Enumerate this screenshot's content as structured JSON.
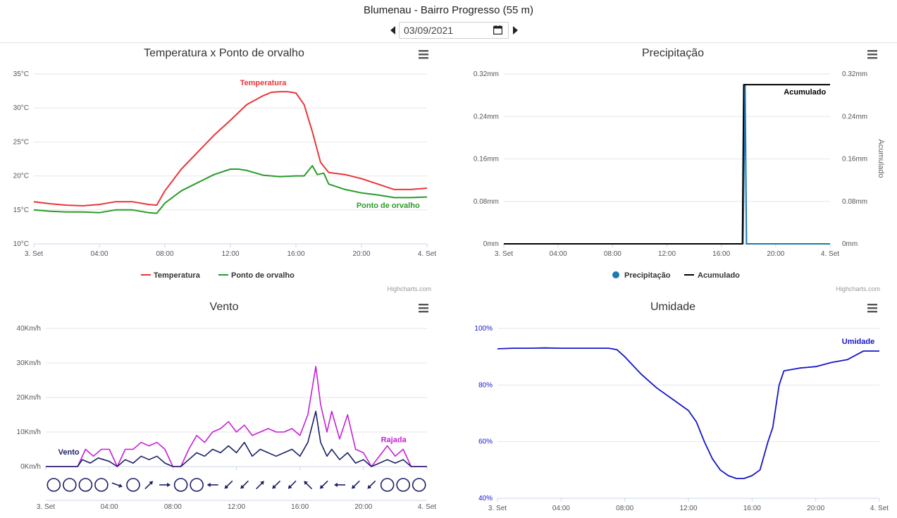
{
  "header": {
    "title": "Blumenau - Bairro Progresso (55 m)",
    "date_value": "03/09/2021"
  },
  "credits": "Highcharts.com",
  "colors": {
    "temperatura": "#e8373a",
    "orvalho": "#2a9b2a",
    "precipitacao": "#1f77b4",
    "acumulado": "#000000",
    "vento": "#1a1f66",
    "rajada": "#c61fd6",
    "umidade": "#1515c8"
  },
  "chart_data": [
    {
      "id": "temp",
      "type": "line",
      "title": "Temperatura x Ponto de orvalho",
      "x_ticks": [
        "3. Set",
        "04:00",
        "08:00",
        "12:00",
        "16:00",
        "20:00",
        "4. Set"
      ],
      "y_ticks": [
        "10°C",
        "15°C",
        "20°C",
        "25°C",
        "30°C",
        "35°C"
      ],
      "ylim": [
        10,
        35
      ],
      "xlim": [
        0,
        24
      ],
      "legend": [
        "Temperatura",
        "Ponto de orvalho"
      ],
      "series": [
        {
          "name": "Temperatura",
          "label": "Temperatura",
          "x": [
            0,
            1,
            2,
            3,
            4,
            5,
            6,
            7,
            7.5,
            8,
            9,
            10,
            11,
            12,
            13,
            14,
            14.5,
            15,
            15.5,
            16,
            16.5,
            17,
            17.5,
            18,
            19,
            20,
            21,
            22,
            23,
            24
          ],
          "y": [
            16.2,
            15.9,
            15.7,
            15.6,
            15.8,
            16.2,
            16.2,
            15.8,
            15.7,
            17.8,
            21,
            23.5,
            26,
            28.2,
            30.5,
            31.8,
            32.3,
            32.4,
            32.4,
            32.2,
            30.5,
            26.5,
            22,
            20.5,
            20.2,
            19.6,
            18.8,
            18,
            18,
            18.2
          ]
        },
        {
          "name": "Ponto de orvalho",
          "label": "Ponto de orvalho",
          "x": [
            0,
            1,
            2,
            3,
            4,
            5,
            6,
            7,
            7.5,
            8,
            9,
            10,
            11,
            12,
            12.5,
            13,
            14,
            15,
            16,
            16.5,
            17,
            17.3,
            17.7,
            18,
            19,
            20,
            21,
            22,
            23,
            24
          ],
          "y": [
            15,
            14.8,
            14.7,
            14.7,
            14.6,
            15,
            15,
            14.6,
            14.5,
            16,
            17.8,
            19,
            20.2,
            21,
            21,
            20.8,
            20.1,
            19.9,
            20,
            20,
            21.5,
            20.2,
            20.4,
            18.8,
            18,
            17.5,
            17.2,
            16.8,
            16.8,
            16.9
          ]
        }
      ]
    },
    {
      "id": "prec",
      "type": "line",
      "title": "Precipitação",
      "x_ticks": [
        "3. Set",
        "04:00",
        "08:00",
        "12:00",
        "16:00",
        "20:00",
        "4. Set"
      ],
      "y_ticks": [
        "0mm",
        "0.08mm",
        "0.16mm",
        "0.24mm",
        "0.32mm"
      ],
      "y2_ticks": [
        "0mm",
        "0.08mm",
        "0.16mm",
        "0.24mm",
        "0.32mm"
      ],
      "y2_label": "Acumulado",
      "ylim": [
        0,
        0.32
      ],
      "xlim": [
        0,
        24
      ],
      "legend": [
        "Precipitação",
        "Acumulado"
      ],
      "series": [
        {
          "name": "Precipitação",
          "x": [
            0,
            17.6,
            17.75,
            17.85,
            24
          ],
          "y": [
            0,
            0,
            0.3,
            0,
            0
          ]
        },
        {
          "name": "Acumulado",
          "label": "Acumulado",
          "x": [
            0,
            17.55,
            17.65,
            24
          ],
          "y": [
            0,
            0,
            0.3,
            0.3
          ]
        }
      ]
    },
    {
      "id": "vento",
      "type": "line",
      "title": "Vento",
      "x_ticks": [
        "3. Set",
        "04:00",
        "08:00",
        "12:00",
        "16:00",
        "20:00",
        "4. Set"
      ],
      "y_ticks": [
        "0Km/h",
        "10Km/h",
        "20Km/h",
        "30Km/h",
        "40Km/h"
      ],
      "ylim": [
        0,
        40
      ],
      "xlim": [
        0,
        24
      ],
      "direction_row": [
        "calm",
        "calm",
        "calm",
        "calm",
        "ESE",
        "calm",
        "NE",
        "E",
        "calm",
        "calm",
        "W",
        "SW",
        "SW",
        "NE",
        "SW",
        "SW",
        "NW",
        "SW",
        "W",
        "SW",
        "SW",
        "calm",
        "calm",
        "calm"
      ],
      "series": [
        {
          "name": "Rajada",
          "label": "Rajada",
          "x": [
            0,
            2,
            2.5,
            3,
            3.5,
            4,
            4.5,
            5,
            5.5,
            6,
            6.5,
            7,
            7.5,
            8,
            8.5,
            9,
            9.5,
            10,
            10.5,
            11,
            11.5,
            12,
            12.5,
            13,
            13.5,
            14,
            14.5,
            15,
            15.5,
            16,
            16.5,
            17,
            17.3,
            17.7,
            18,
            18.5,
            19,
            19.5,
            20,
            20.5,
            21,
            21.5,
            22,
            22.5,
            23,
            23.5,
            24
          ],
          "y": [
            0,
            0,
            5,
            3,
            5,
            5,
            0,
            5,
            5,
            7,
            6,
            7,
            5,
            0,
            0,
            5,
            9,
            7,
            10,
            11,
            13,
            10,
            12,
            9,
            10,
            11,
            10,
            10,
            11,
            9,
            15,
            29,
            18,
            10,
            16,
            8,
            15,
            5,
            4,
            0,
            3,
            6,
            3,
            5,
            0,
            0,
            0
          ]
        },
        {
          "name": "Vento",
          "label": "Vento",
          "x": [
            0,
            2,
            2.3,
            2.8,
            3.3,
            4,
            4.5,
            5,
            5.5,
            6,
            6.5,
            7,
            7.5,
            8,
            8.5,
            9,
            9.5,
            10,
            10.5,
            11,
            11.5,
            12,
            12.5,
            13,
            13.5,
            14,
            14.5,
            15,
            15.5,
            16,
            16.5,
            17,
            17.3,
            17.7,
            18,
            18.5,
            19,
            19.5,
            20,
            20.5,
            21,
            21.5,
            22,
            22.5,
            23,
            23.5,
            24
          ],
          "y": [
            0,
            0,
            2,
            1,
            2.5,
            1.5,
            0,
            2,
            1,
            3,
            2,
            3,
            1,
            0,
            0,
            2,
            4,
            3,
            5,
            4,
            6,
            4,
            7,
            3,
            5,
            4,
            3,
            4,
            5,
            3,
            7,
            16,
            7,
            3,
            5,
            2,
            4,
            1,
            2,
            0,
            1,
            2,
            1,
            2,
            0,
            0,
            0
          ]
        }
      ]
    },
    {
      "id": "umid",
      "type": "line",
      "title": "Umidade",
      "x_ticks": [
        "3. Set",
        "04:00",
        "08:00",
        "12:00",
        "16:00",
        "20:00",
        "4. Set"
      ],
      "y_ticks": [
        "40%",
        "60%",
        "80%",
        "100%"
      ],
      "ylim": [
        40,
        100
      ],
      "xlim": [
        0,
        24
      ],
      "series": [
        {
          "name": "Umidade",
          "label": "Umidade",
          "x": [
            0,
            1,
            2,
            3,
            4,
            5,
            6,
            7,
            7.5,
            8,
            9,
            10,
            11,
            12,
            12.5,
            13,
            13.5,
            14,
            14.5,
            15,
            15.5,
            16,
            16.5,
            17,
            17.3,
            17.7,
            18,
            19,
            20,
            21,
            22,
            23,
            24
          ],
          "y": [
            92.8,
            93,
            93,
            93.1,
            93,
            93,
            93,
            93,
            92.5,
            90,
            84,
            79,
            75,
            71,
            67,
            60,
            54,
            50,
            48,
            47,
            47,
            48,
            50,
            60,
            65,
            80,
            85,
            86,
            86.5,
            88,
            89,
            92,
            92
          ]
        }
      ]
    }
  ]
}
